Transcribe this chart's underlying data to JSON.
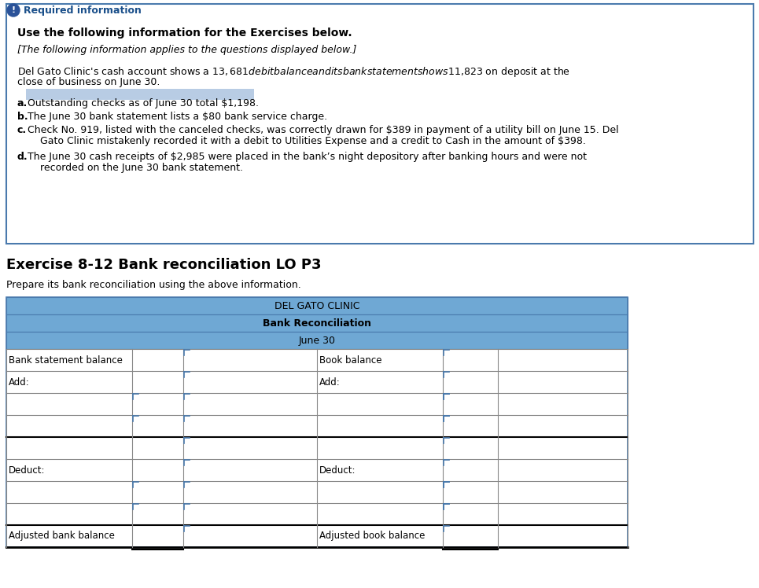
{
  "bg_color": "#ffffff",
  "info_box": {
    "border_color": "#4a7aad",
    "icon_bg": "#2a5298",
    "icon_text": "!",
    "required_label": "Required information",
    "required_color": "#1a4f8a",
    "bold_heading": "Use the following information for the Exercises below.",
    "italic_line": "[The following information applies to the questions displayed below.]",
    "para_line1": "Del Gato Clinic's cash account shows a $13,681 debit balance and its bank statement shows $11,823 on deposit at the",
    "para_line2": "close of business on June 30.",
    "item_a_label": "a.",
    "item_a_text": "Outstanding checks as of June 30 total $1,198.",
    "item_a_highlight": "#b8cce4",
    "item_b_label": "b.",
    "item_b_text": "The June 30 bank statement lists a $80 bank service charge.",
    "item_c_label": "c.",
    "item_c_line1": "Check No. 919, listed with the canceled checks, was correctly drawn for $389 in payment of a utility bill on June 15. Del",
    "item_c_line2": "    Gato Clinic mistakenly recorded it with a debit to Utilities Expense and a credit to Cash in the amount of $398.",
    "item_d_label": "d.",
    "item_d_line1": "The June 30 cash receipts of $2,985 were placed in the bank’s night depository after banking hours and were not",
    "item_d_line2": "    recorded on the June 30 bank statement."
  },
  "exercise_title": "Exercise 8-12 Bank reconciliation LO P3",
  "subtitle": "Prepare its bank reconciliation using the above information.",
  "table": {
    "title1": "DEL GATO CLINIC",
    "title2": "Bank Reconciliation",
    "title3": "June 30",
    "header_bg": "#6fa8d4",
    "header_border": "#4a7aad",
    "cell_border": "#888888",
    "blue_indicator": "#4a7aad",
    "row_labels_left": [
      "Bank statement balance",
      "Add:",
      "",
      "",
      "",
      "Deduct:",
      "",
      "",
      "Adjusted bank balance"
    ],
    "row_labels_right": [
      "Book balance",
      "Add:",
      "",
      "",
      "",
      "Deduct:",
      "",
      "",
      "Adjusted book balance"
    ],
    "bold_last_underline_cols": [
      1,
      2,
      4,
      5
    ]
  }
}
